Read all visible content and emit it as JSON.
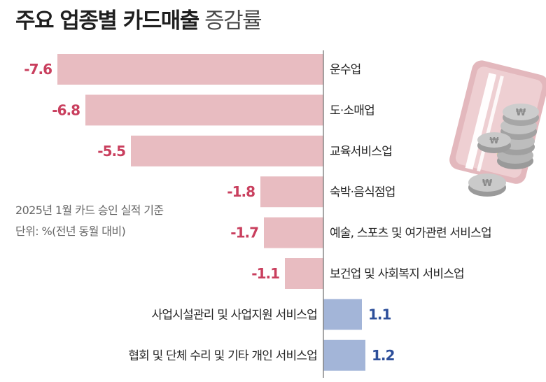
{
  "title": {
    "bold": "주요 업종별 카드매출",
    "light": "증감률"
  },
  "note": {
    "line1": "2025년 1월 카드 승인 실적 기준",
    "line2": "단위: %(전년 동월 대비)"
  },
  "colors": {
    "negative_bar": "#e8bcc1",
    "negative_text": "#c93f5e",
    "positive_bar": "#a3b5d8",
    "positive_text": "#2d4f9a",
    "axis": "#777777"
  },
  "chart_data": {
    "type": "bar",
    "orientation": "horizontal",
    "categories": [
      "운수업",
      "도·소매업",
      "교육서비스업",
      "숙박·음식점업",
      "예술, 스포츠 및 여가관련 서비스업",
      "보건업 및 사회복지 서비스업",
      "사업시설관리 및 사업지원 서비스업",
      "협회 및 단체 수리 및 기타 개인 서비스업"
    ],
    "values": [
      -7.6,
      -6.8,
      -5.5,
      -1.8,
      -1.7,
      -1.1,
      1.1,
      1.2
    ],
    "value_labels": [
      "-7.6",
      "-6.8",
      "-5.5",
      "-1.8",
      "-1.7",
      "-1.1",
      "1.1",
      "1.2"
    ],
    "xlim": [
      -7.6,
      1.2
    ],
    "grid": false,
    "legend": "none"
  },
  "illustration": {
    "icon": "credit-card-and-won-coins-icon",
    "coin_symbol": "₩"
  }
}
